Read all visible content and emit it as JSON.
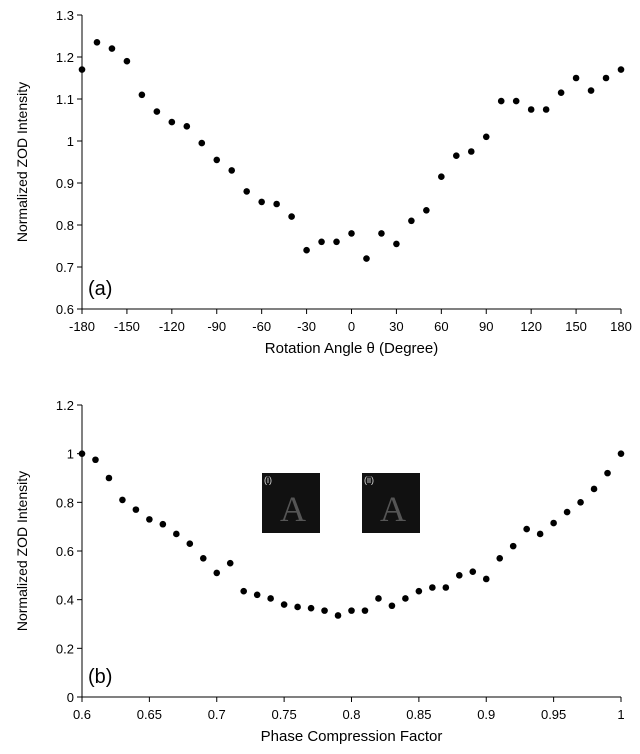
{
  "chart_data": [
    {
      "type": "scatter",
      "annotation": "(a)",
      "x_label": "Rotation Angle θ (Degree)",
      "y_label": "Normalized ZOD Intensity",
      "color": "#000000",
      "x": [
        -180,
        -170,
        -160,
        -150,
        -140,
        -130,
        -120,
        -110,
        -100,
        -90,
        -80,
        -70,
        -60,
        -50,
        -40,
        -30,
        -20,
        -10,
        0,
        10,
        20,
        30,
        40,
        50,
        60,
        70,
        80,
        90,
        100,
        110,
        120,
        130,
        140,
        150,
        160,
        170,
        180
      ],
      "values": [
        1.17,
        1.235,
        1.22,
        1.19,
        1.11,
        1.07,
        1.045,
        1.035,
        0.995,
        0.955,
        0.93,
        0.88,
        0.855,
        0.85,
        0.82,
        0.74,
        0.76,
        0.76,
        0.78,
        0.72,
        0.78,
        0.755,
        0.81,
        0.835,
        0.915,
        0.965,
        0.975,
        1.01,
        1.095,
        1.095,
        1.075,
        1.075,
        1.115,
        1.15,
        1.12,
        1.15,
        1.17
      ],
      "xlim": [
        -180,
        180
      ],
      "xticks": [
        -180,
        -150,
        -120,
        -90,
        -60,
        -30,
        0,
        30,
        60,
        90,
        120,
        150,
        180
      ],
      "ylim": [
        0.6,
        1.3
      ],
      "yticks": [
        0.6,
        0.7,
        0.8,
        0.9,
        1,
        1.1,
        1.2,
        1.3
      ]
    },
    {
      "type": "scatter",
      "annotation": "(b)",
      "x_label": "Phase Compression Factor",
      "y_label": "Normalized ZOD Intensity",
      "color": "#000000",
      "x": [
        0.6,
        0.61,
        0.62,
        0.63,
        0.64,
        0.65,
        0.66,
        0.67,
        0.68,
        0.69,
        0.7,
        0.71,
        0.72,
        0.73,
        0.74,
        0.75,
        0.76,
        0.77,
        0.78,
        0.79,
        0.8,
        0.81,
        0.82,
        0.83,
        0.84,
        0.85,
        0.86,
        0.87,
        0.88,
        0.89,
        0.9,
        0.91,
        0.92,
        0.93,
        0.94,
        0.95,
        0.96,
        0.97,
        0.98,
        0.99,
        1
      ],
      "values": [
        1.0,
        0.975,
        0.9,
        0.81,
        0.77,
        0.73,
        0.71,
        0.67,
        0.63,
        0.57,
        0.51,
        0.55,
        0.435,
        0.42,
        0.405,
        0.38,
        0.37,
        0.365,
        0.355,
        0.335,
        0.355,
        0.355,
        0.405,
        0.375,
        0.405,
        0.435,
        0.45,
        0.45,
        0.5,
        0.515,
        0.485,
        0.57,
        0.62,
        0.69,
        0.67,
        0.715,
        0.76,
        0.8,
        0.855,
        0.92,
        1.0
      ],
      "xlim": [
        0.6,
        1
      ],
      "xticks": [
        0.6,
        0.65,
        0.7,
        0.75,
        0.8,
        0.85,
        0.9,
        0.95,
        1
      ],
      "ylim": [
        0,
        1.2
      ],
      "yticks": [
        0,
        0.2,
        0.4,
        0.6,
        0.8,
        1,
        1.2
      ],
      "insets": [
        {
          "label": "(i)",
          "content": "A"
        },
        {
          "label": "(ii)",
          "content": "A"
        }
      ]
    }
  ]
}
